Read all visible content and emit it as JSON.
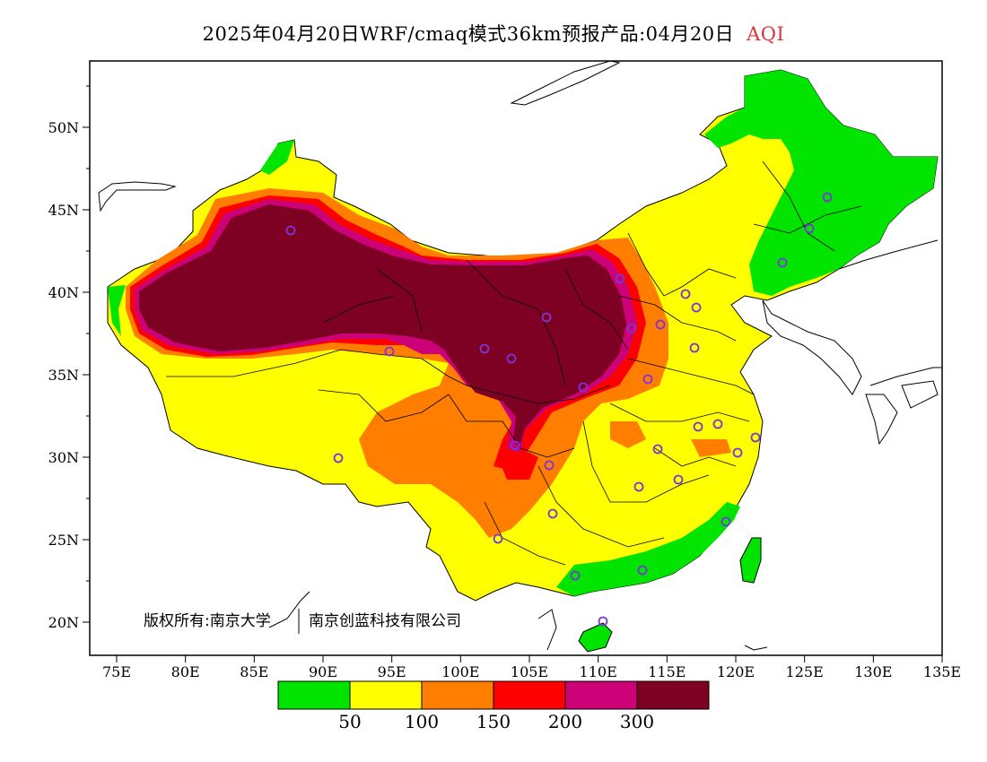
{
  "header": {
    "title": "2025年04月20日WRF/cmaq模式36km预报产品:04月20日",
    "variable": "AQI"
  },
  "map": {
    "lat_ticks": [
      "20N",
      "25N",
      "30N",
      "35N",
      "40N",
      "45N",
      "50N"
    ],
    "lon_ticks": [
      "75E",
      "80E",
      "85E",
      "90E",
      "95E",
      "100E",
      "105E",
      "110E",
      "115E",
      "120E",
      "125E",
      "130E",
      "135E"
    ],
    "copyright": "版权所有:南京大学",
    "copyright_org": "南京创蓝科技有限公司"
  },
  "legend": {
    "colors": [
      "#00e400",
      "#ffff00",
      "#ff7e00",
      "#ff0000",
      "#cc0077",
      "#7e0023"
    ],
    "labels": [
      "50",
      "100",
      "150",
      "200",
      "300"
    ]
  }
}
